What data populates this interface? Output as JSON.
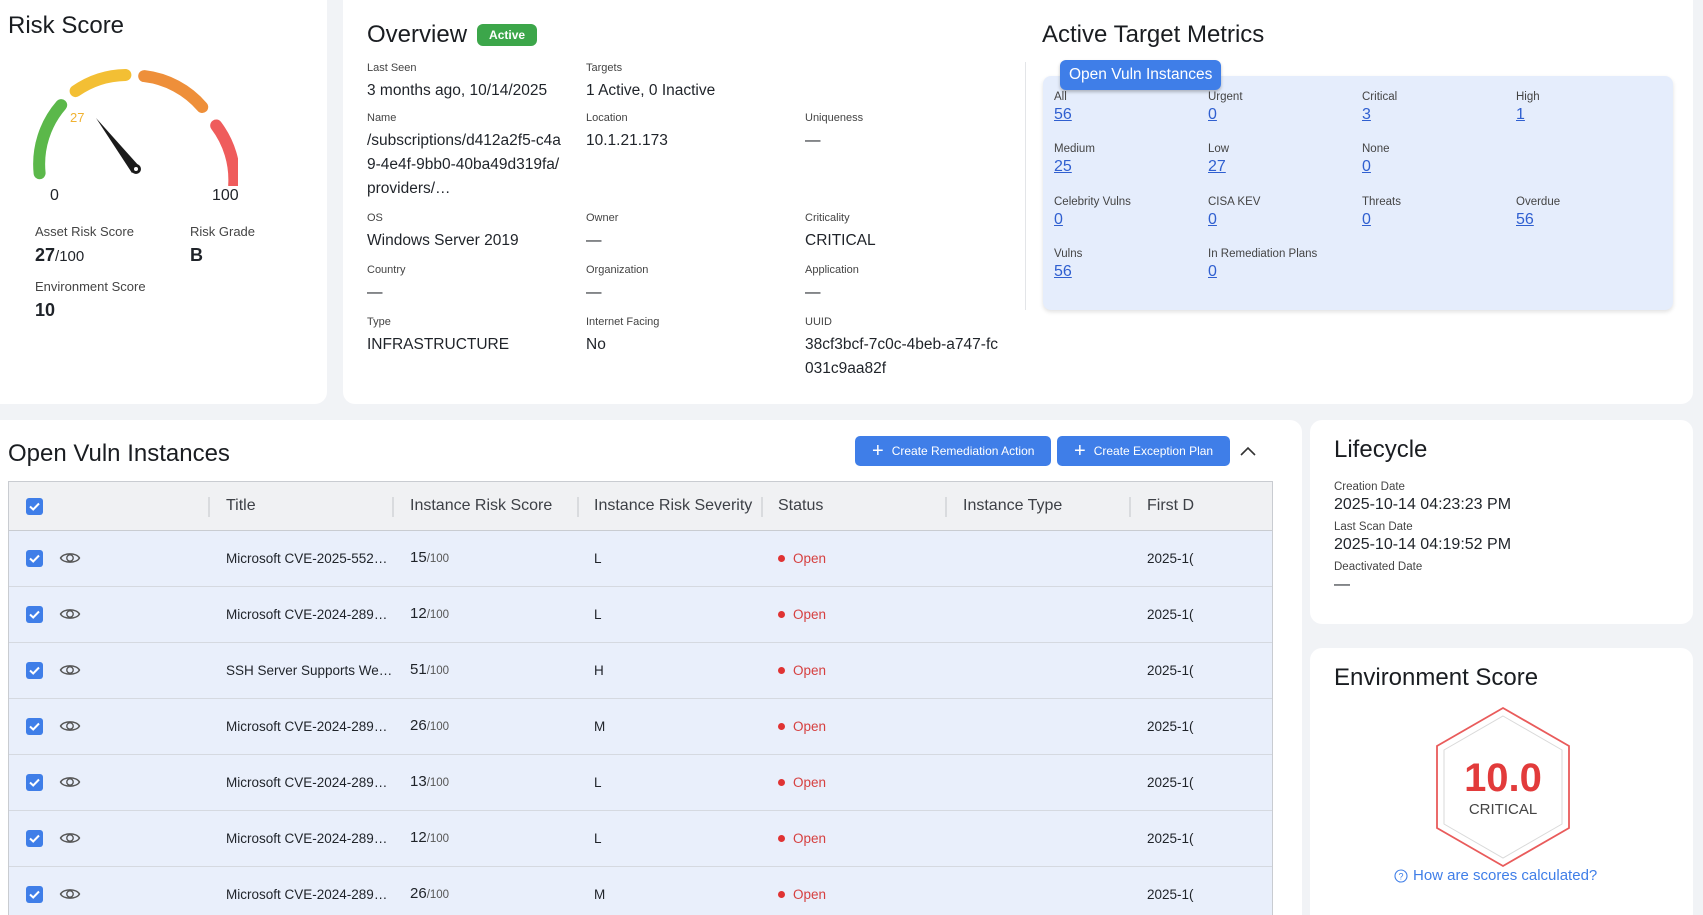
{
  "risk_score": {
    "title": "Risk Score",
    "gauge_value": "27",
    "gauge_min": "0",
    "gauge_max": "100",
    "asset_risk_label": "Asset Risk Score",
    "asset_risk_value": "27",
    "asset_risk_max": "/100",
    "risk_grade_label": "Risk Grade",
    "risk_grade_value": "B",
    "env_score_label": "Environment Score",
    "env_score_value": "10"
  },
  "overview": {
    "title": "Overview",
    "status_badge": "Active",
    "fields": {
      "last_seen": {
        "label": "Last Seen",
        "value": "3 months ago, 10/14/2025"
      },
      "targets": {
        "label": "Targets",
        "value": "1 Active, 0 Inactive"
      },
      "name": {
        "label": "Name",
        "value": "/subscriptions/d412a2f5-c4a9-4e4f-9bb0-40ba49d319fa/providers/…"
      },
      "location": {
        "label": "Location",
        "value": "10.1.21.173"
      },
      "uniqueness": {
        "label": "Uniqueness",
        "value": "—"
      },
      "os": {
        "label": "OS",
        "value": "Windows Server 2019"
      },
      "owner": {
        "label": "Owner",
        "value": "—"
      },
      "criticality": {
        "label": "Criticality",
        "value": "CRITICAL"
      },
      "country": {
        "label": "Country",
        "value": "—"
      },
      "organization": {
        "label": "Organization",
        "value": "—"
      },
      "application": {
        "label": "Application",
        "value": "—"
      },
      "type": {
        "label": "Type",
        "value": "INFRASTRUCTURE"
      },
      "internet_facing": {
        "label": "Internet Facing",
        "value": "No"
      },
      "uuid": {
        "label": "UUID",
        "value": "38cf3bcf-7c0c-4beb-a747-fc031c9aa82f"
      }
    }
  },
  "metrics": {
    "title": "Active Target Metrics",
    "tab": "Open Vuln Instances",
    "items": [
      {
        "label": "All",
        "value": "56"
      },
      {
        "label": "Urgent",
        "value": "0"
      },
      {
        "label": "Critical",
        "value": "3"
      },
      {
        "label": "High",
        "value": "1"
      },
      {
        "label": "Medium",
        "value": "25"
      },
      {
        "label": "Low",
        "value": "27"
      },
      {
        "label": "None",
        "value": "0"
      },
      {
        "label": "Celebrity Vulns",
        "value": "0"
      },
      {
        "label": "CISA KEV",
        "value": "0"
      },
      {
        "label": "Threats",
        "value": "0"
      },
      {
        "label": "Overdue",
        "value": "56"
      },
      {
        "label": "Vulns",
        "value": "56"
      },
      {
        "label": "In Remediation Plans",
        "value": "0"
      }
    ]
  },
  "vulns": {
    "title": "Open Vuln Instances",
    "create_remediation_label": "Create Remediation Action",
    "create_exception_label": "Create Exception Plan",
    "columns": [
      "Title",
      "Instance Risk Score",
      "Instance Risk Severity",
      "Status",
      "Instance Type",
      "First D"
    ],
    "score_suffix": "/100",
    "rows": [
      {
        "title": "Microsoft CVE-2025-552…",
        "score": "15",
        "severity": "L",
        "status": "Open",
        "first": "2025-1("
      },
      {
        "title": "Microsoft CVE-2024-289…",
        "score": "12",
        "severity": "L",
        "status": "Open",
        "first": "2025-1("
      },
      {
        "title": "SSH Server Supports We…",
        "score": "51",
        "severity": "H",
        "status": "Open",
        "first": "2025-1("
      },
      {
        "title": "Microsoft CVE-2024-289…",
        "score": "26",
        "severity": "M",
        "status": "Open",
        "first": "2025-1("
      },
      {
        "title": "Microsoft CVE-2024-289…",
        "score": "13",
        "severity": "L",
        "status": "Open",
        "first": "2025-1("
      },
      {
        "title": "Microsoft CVE-2024-289…",
        "score": "12",
        "severity": "L",
        "status": "Open",
        "first": "2025-1("
      },
      {
        "title": "Microsoft CVE-2024-289…",
        "score": "26",
        "severity": "M",
        "status": "Open",
        "first": "2025-1("
      }
    ]
  },
  "lifecycle": {
    "title": "Lifecycle",
    "creation_label": "Creation Date",
    "creation_value": "2025-10-14 04:23:23 PM",
    "last_scan_label": "Last Scan Date",
    "last_scan_value": "2025-10-14 04:19:52 PM",
    "deactivated_label": "Deactivated Date",
    "deactivated_value": "—"
  },
  "environment": {
    "title": "Environment Score",
    "value": "10.0",
    "grade": "CRITICAL",
    "help_link": "How are scores calculated?"
  },
  "colors": {
    "accent": "#3f7ee8",
    "active_green": "#3ca64a",
    "critical_red": "#e23b3b"
  }
}
